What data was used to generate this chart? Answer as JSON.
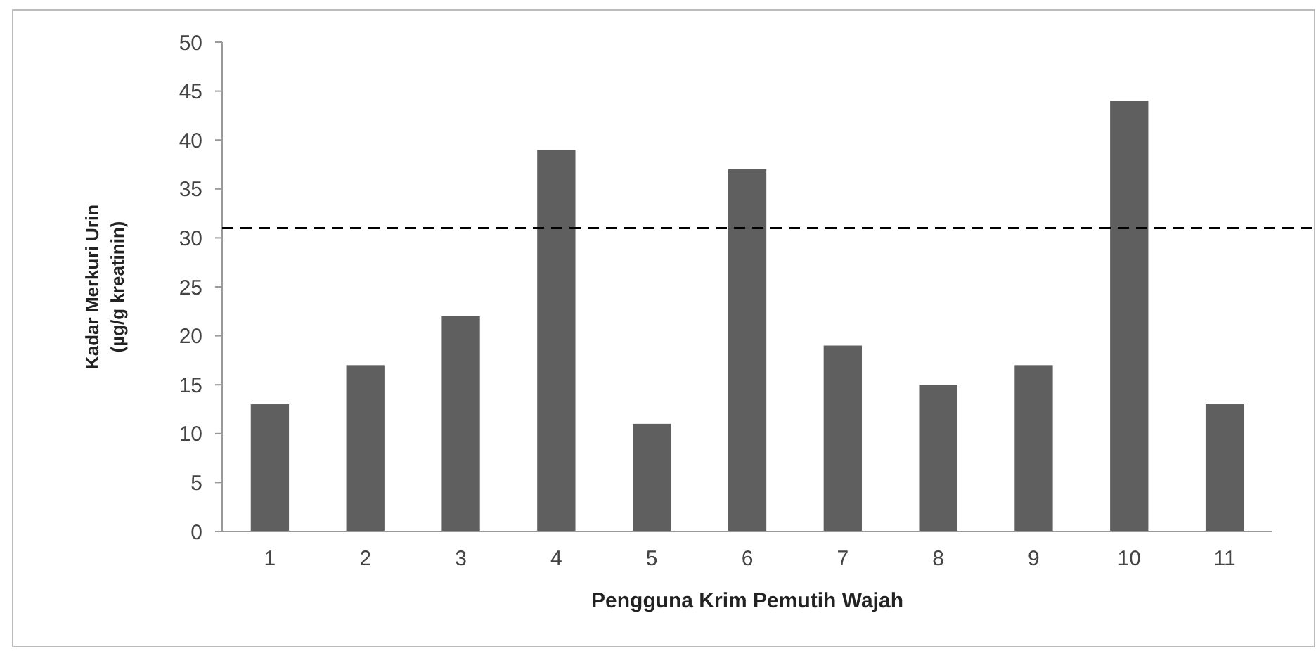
{
  "chart_data": {
    "type": "bar",
    "xlabel": "Pengguna Krim Pemutih Wajah",
    "ylabel": "Kadar Merkuri Urin\n(µg/g kreatinin)",
    "categories": [
      "1",
      "2",
      "3",
      "4",
      "5",
      "6",
      "7",
      "8",
      "9",
      "10",
      "11"
    ],
    "values": [
      13,
      17,
      22,
      39,
      11,
      37,
      19,
      15,
      17,
      44,
      13
    ],
    "color": "#5f5f5f",
    "ylim": [
      0,
      50
    ],
    "yticks": [
      0,
      5,
      10,
      15,
      20,
      25,
      30,
      35,
      40,
      45,
      50
    ],
    "grid": false,
    "ref_lines": [
      {
        "axis": "y",
        "value": 31,
        "line_style": "dashed",
        "color": "#000000"
      }
    ]
  }
}
